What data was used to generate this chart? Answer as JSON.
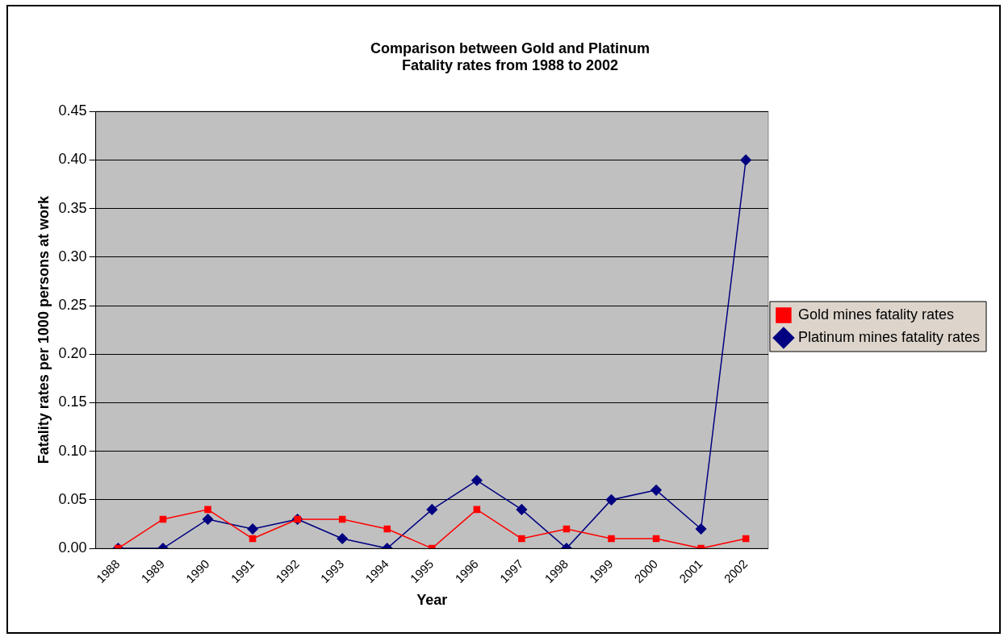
{
  "chart_data": {
    "type": "line",
    "title": "Comparison between Gold and Platinum\nFatality rates from 1988 to 2002",
    "xlabel": "Year",
    "ylabel": "Fatality rates per 1000 persons at work",
    "categories": [
      "1988",
      "1989",
      "1990",
      "1991",
      "1992",
      "1993",
      "1994",
      "1995",
      "1996",
      "1997",
      "1998",
      "1999",
      "2000",
      "2001",
      "2002"
    ],
    "series": [
      {
        "name": "Platinum mines fatality rates",
        "color": "#000080",
        "marker": "diamond",
        "values": [
          0,
          0,
          0.03,
          0.02,
          0.03,
          0.01,
          0,
          0.04,
          0.07,
          0.04,
          0,
          0.05,
          0.06,
          0.02,
          0.4
        ]
      },
      {
        "name": "Gold mines fatality rates",
        "color": "#ff0000",
        "marker": "square",
        "values": [
          0,
          0.03,
          0.04,
          0.01,
          0.03,
          0.03,
          0.02,
          0,
          0.04,
          0.01,
          0.02,
          0.01,
          0.01,
          0,
          0.01
        ]
      }
    ],
    "ylim": [
      0,
      0.45
    ],
    "yticks": [
      {
        "value": 0,
        "label": "0.00"
      },
      {
        "value": 0.05,
        "label": "0.05"
      },
      {
        "value": 0.1,
        "label": "0.10"
      },
      {
        "value": 0.15,
        "label": "0.15"
      },
      {
        "value": 0.2,
        "label": "0.20"
      },
      {
        "value": 0.25,
        "label": "0.25"
      },
      {
        "value": 0.3,
        "label": "0.30"
      },
      {
        "value": 0.35,
        "label": "0.35"
      },
      {
        "value": 0.4,
        "label": "0.40"
      },
      {
        "value": 0.45,
        "label": "0.45"
      }
    ],
    "grid": "y",
    "legend": "right",
    "line_style": "solid"
  }
}
